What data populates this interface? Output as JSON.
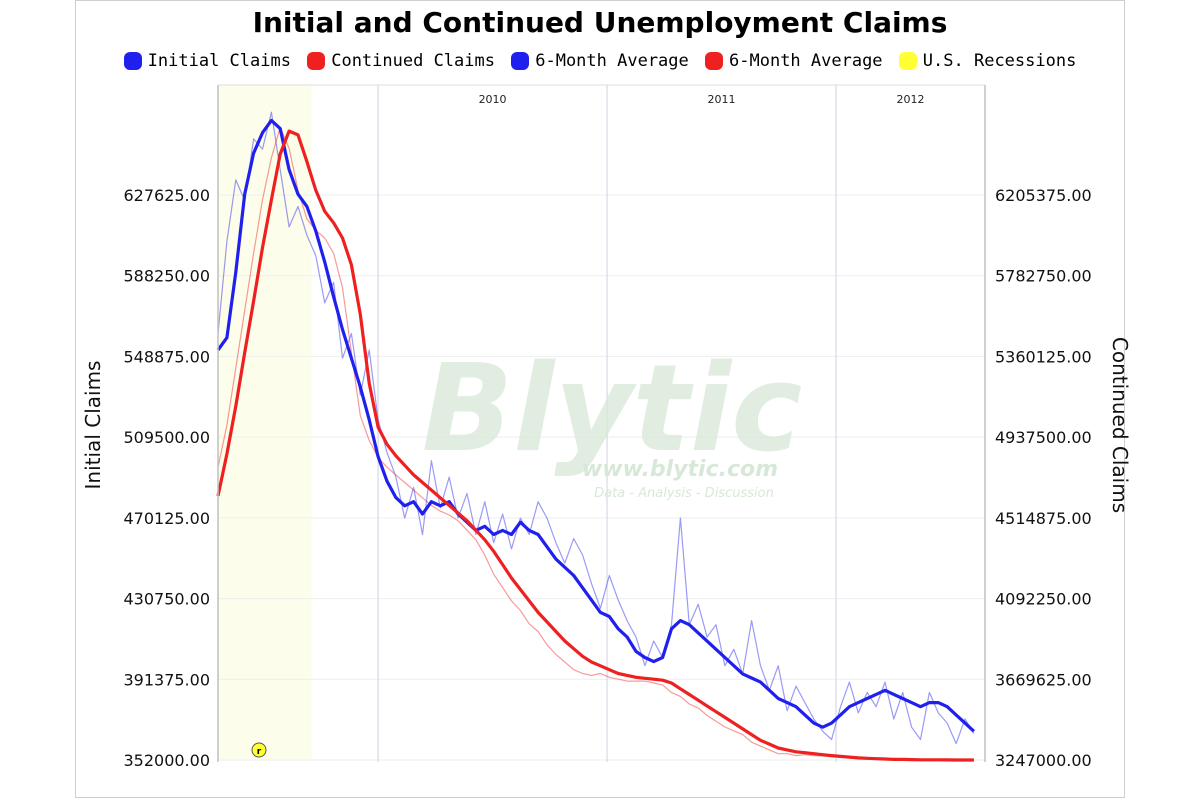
{
  "colors": {
    "initial": "#2020ee",
    "continued": "#ee2020",
    "recession": "#ffff33",
    "recession_band": "#fdfdeb",
    "watermark": "#d8e8d8"
  },
  "chart_data": {
    "type": "line",
    "title": "Initial and Continued Unemployment Claims",
    "legend": [
      "Initial Claims",
      "Continued Claims",
      "6-Month Average",
      "6-Month Average",
      "U.S. Recessions"
    ],
    "legend_placement": "top-center",
    "ylabel_left": "Initial Claims",
    "ylabel_right": "Continued Claims",
    "ylim_left": [
      352000,
      680000
    ],
    "ylim_right": [
      3247000,
      6600000
    ],
    "yticks_left": [
      "627625.00",
      "588250.00",
      "548875.00",
      "509500.00",
      "470125.00",
      "430750.00",
      "391375.00",
      "352000.00"
    ],
    "yticks_right": [
      "6205375.00",
      "5782750.00",
      "5360125.00",
      "4937500.00",
      "4514875.00",
      "4092250.00",
      "3669625.00",
      "3247000.00"
    ],
    "xlim": [
      2009.0,
      2012.45
    ],
    "year_labels": [
      "2010",
      "2011",
      "2012"
    ],
    "year_lines": [
      2009.72,
      2010.75,
      2011.78
    ],
    "recession": [
      2009.0,
      2009.42
    ],
    "grid": true,
    "watermark": {
      "text": "Blytic",
      "url": "www.blytic.com",
      "tagline": "Data - Analysis - Discussion"
    },
    "marker_label": "r",
    "series": [
      {
        "name": "Initial Claims",
        "axis": "left",
        "x": [
          2009.0,
          2009.04,
          2009.08,
          2009.12,
          2009.16,
          2009.2,
          2009.24,
          2009.28,
          2009.32,
          2009.36,
          2009.4,
          2009.44,
          2009.48,
          2009.52,
          2009.56,
          2009.6,
          2009.64,
          2009.68,
          2009.72,
          2009.76,
          2009.8,
          2009.84,
          2009.88,
          2009.92,
          2009.96,
          2010.0,
          2010.04,
          2010.08,
          2010.12,
          2010.16,
          2010.2,
          2010.24,
          2010.28,
          2010.32,
          2010.36,
          2010.4,
          2010.44,
          2010.48,
          2010.52,
          2010.56,
          2010.6,
          2010.64,
          2010.68,
          2010.72,
          2010.76,
          2010.8,
          2010.84,
          2010.88,
          2010.92,
          2010.96,
          2011.0,
          2011.04,
          2011.08,
          2011.12,
          2011.16,
          2011.2,
          2011.24,
          2011.28,
          2011.32,
          2011.36,
          2011.4,
          2011.44,
          2011.48,
          2011.52,
          2011.56,
          2011.6,
          2011.64,
          2011.68,
          2011.72,
          2011.76,
          2011.8,
          2011.84,
          2011.88,
          2011.92,
          2011.96,
          2012.0,
          2012.04,
          2012.08,
          2012.12,
          2012.16,
          2012.2,
          2012.24,
          2012.28,
          2012.32,
          2012.36,
          2012.4
        ],
        "values": [
          560000,
          605000,
          635000,
          625000,
          655000,
          650000,
          668000,
          640000,
          612000,
          622000,
          608000,
          598000,
          575000,
          585000,
          548000,
          560000,
          530000,
          552000,
          518000,
          502000,
          490000,
          470000,
          485000,
          462000,
          498000,
          475000,
          490000,
          470000,
          482000,
          462000,
          478000,
          458000,
          472000,
          455000,
          470000,
          462000,
          478000,
          470000,
          458000,
          448000,
          460000,
          452000,
          438000,
          426000,
          442000,
          430000,
          420000,
          412000,
          398000,
          410000,
          402000,
          418000,
          470000,
          418000,
          428000,
          412000,
          418000,
          398000,
          406000,
          394000,
          420000,
          398000,
          386000,
          398000,
          376000,
          388000,
          380000,
          372000,
          366000,
          362000,
          378000,
          390000,
          375000,
          385000,
          378000,
          390000,
          372000,
          385000,
          368000,
          362000,
          385000,
          375000,
          370000,
          360000,
          372000,
          365000
        ]
      },
      {
        "name": "Continued Claims",
        "axis": "right",
        "x": [
          2009.0,
          2009.04,
          2009.08,
          2009.12,
          2009.16,
          2009.2,
          2009.24,
          2009.28,
          2009.32,
          2009.36,
          2009.4,
          2009.44,
          2009.48,
          2009.52,
          2009.56,
          2009.6,
          2009.64,
          2009.68,
          2009.72,
          2009.76,
          2009.8,
          2009.84,
          2009.88,
          2009.92,
          2009.96,
          2010.0,
          2010.04,
          2010.08,
          2010.12,
          2010.16,
          2010.2,
          2010.24,
          2010.28,
          2010.32,
          2010.36,
          2010.4,
          2010.44,
          2010.48,
          2010.52,
          2010.56,
          2010.6,
          2010.64,
          2010.68,
          2010.72,
          2010.76,
          2010.8,
          2010.84,
          2010.88,
          2010.92,
          2010.96,
          2011.0,
          2011.04,
          2011.08,
          2011.12,
          2011.16,
          2011.2,
          2011.24,
          2011.28,
          2011.32,
          2011.36,
          2011.4,
          2011.44,
          2011.48,
          2011.52,
          2011.56,
          2011.6,
          2011.64,
          2011.68,
          2011.72,
          2011.76,
          2011.8,
          2011.84,
          2011.88,
          2011.92,
          2011.96,
          2012.0,
          2012.04,
          2012.08,
          2012.12,
          2012.16,
          2012.2,
          2012.24,
          2012.28,
          2012.32,
          2012.36,
          2012.4
        ],
        "values": [
          4780000,
          5000000,
          5300000,
          5600000,
          5900000,
          6180000,
          6400000,
          6560000,
          6450000,
          6230000,
          6080000,
          6020000,
          5980000,
          5900000,
          5720000,
          5380000,
          5050000,
          4920000,
          4830000,
          4780000,
          4740000,
          4700000,
          4660000,
          4620000,
          4580000,
          4550000,
          4530000,
          4500000,
          4450000,
          4400000,
          4320000,
          4220000,
          4150000,
          4080000,
          4030000,
          3960000,
          3920000,
          3850000,
          3800000,
          3760000,
          3720000,
          3700000,
          3690000,
          3700000,
          3680000,
          3670000,
          3660000,
          3660000,
          3660000,
          3650000,
          3640000,
          3600000,
          3580000,
          3540000,
          3520000,
          3480000,
          3450000,
          3420000,
          3400000,
          3380000,
          3340000,
          3320000,
          3300000,
          3280000,
          3280000,
          3270000,
          3275000,
          3270000,
          3268000,
          3265000,
          3262000,
          3260000,
          3258000,
          3256000,
          3254000,
          3252000,
          3250000,
          3250000,
          3249000,
          3248000,
          3248000,
          3248000,
          3247500,
          3247000,
          3247000,
          3247000
        ]
      },
      {
        "name": "6-Month Average",
        "axis": "left",
        "x": [
          2009.0,
          2009.04,
          2009.08,
          2009.12,
          2009.16,
          2009.2,
          2009.24,
          2009.28,
          2009.32,
          2009.36,
          2009.4,
          2009.44,
          2009.48,
          2009.52,
          2009.56,
          2009.6,
          2009.64,
          2009.68,
          2009.72,
          2009.76,
          2009.8,
          2009.84,
          2009.88,
          2009.92,
          2009.96,
          2010.0,
          2010.04,
          2010.08,
          2010.12,
          2010.16,
          2010.2,
          2010.24,
          2010.28,
          2010.32,
          2010.36,
          2010.4,
          2010.44,
          2010.48,
          2010.52,
          2010.56,
          2010.6,
          2010.64,
          2010.68,
          2010.72,
          2010.76,
          2010.8,
          2010.84,
          2010.88,
          2010.92,
          2010.96,
          2011.0,
          2011.04,
          2011.08,
          2011.12,
          2011.16,
          2011.2,
          2011.24,
          2011.28,
          2011.32,
          2011.36,
          2011.4,
          2011.44,
          2011.48,
          2011.52,
          2011.56,
          2011.6,
          2011.64,
          2011.68,
          2011.72,
          2011.76,
          2011.8,
          2011.84,
          2011.88,
          2011.92,
          2011.96,
          2012.0,
          2012.04,
          2012.08,
          2012.12,
          2012.16,
          2012.2,
          2012.24,
          2012.28,
          2012.32,
          2012.36,
          2012.4
        ],
        "values": [
          552000,
          558000,
          590000,
          628000,
          648000,
          658000,
          664000,
          660000,
          640000,
          628000,
          622000,
          610000,
          595000,
          578000,
          562000,
          548000,
          534000,
          518000,
          500000,
          488000,
          480000,
          476000,
          478000,
          472000,
          478000,
          476000,
          478000,
          472000,
          468000,
          464000,
          466000,
          462000,
          464000,
          462000,
          468000,
          464000,
          462000,
          456000,
          450000,
          446000,
          442000,
          436000,
          430000,
          424000,
          422000,
          416000,
          412000,
          405000,
          402000,
          400000,
          402000,
          416000,
          420000,
          418000,
          414000,
          410000,
          406000,
          402000,
          398000,
          394000,
          392000,
          390000,
          386000,
          382000,
          380000,
          378000,
          374000,
          370000,
          368000,
          370000,
          374000,
          378000,
          380000,
          382000,
          384000,
          386000,
          384000,
          382000,
          380000,
          378000,
          380000,
          380000,
          378000,
          374000,
          370000,
          366000
        ]
      },
      {
        "name": "6-Month Average",
        "axis": "right",
        "x": [
          2009.0,
          2009.04,
          2009.08,
          2009.12,
          2009.16,
          2009.2,
          2009.24,
          2009.28,
          2009.32,
          2009.36,
          2009.4,
          2009.44,
          2009.48,
          2009.52,
          2009.56,
          2009.6,
          2009.64,
          2009.68,
          2009.72,
          2009.76,
          2009.8,
          2009.84,
          2009.88,
          2009.92,
          2009.96,
          2010.0,
          2010.04,
          2010.08,
          2010.12,
          2010.16,
          2010.2,
          2010.24,
          2010.28,
          2010.32,
          2010.36,
          2010.4,
          2010.44,
          2010.48,
          2010.52,
          2010.56,
          2010.6,
          2010.64,
          2010.68,
          2010.72,
          2010.76,
          2010.8,
          2010.84,
          2010.88,
          2010.92,
          2010.96,
          2011.0,
          2011.04,
          2011.08,
          2011.12,
          2011.16,
          2011.2,
          2011.24,
          2011.28,
          2011.32,
          2011.36,
          2011.4,
          2011.44,
          2011.48,
          2011.52,
          2011.56,
          2011.6,
          2011.64,
          2011.68,
          2011.72,
          2011.76,
          2011.8,
          2011.84,
          2011.88,
          2011.92,
          2011.96,
          2012.0,
          2012.04,
          2012.08,
          2012.12,
          2012.16,
          2012.2,
          2012.24,
          2012.28,
          2012.32,
          2012.36,
          2012.4
        ],
        "values": [
          4630000,
          4850000,
          5100000,
          5380000,
          5650000,
          5930000,
          6180000,
          6420000,
          6540000,
          6520000,
          6380000,
          6230000,
          6120000,
          6060000,
          5980000,
          5840000,
          5580000,
          5220000,
          4990000,
          4900000,
          4840000,
          4790000,
          4740000,
          4700000,
          4660000,
          4620000,
          4580000,
          4540000,
          4500000,
          4450000,
          4400000,
          4340000,
          4270000,
          4200000,
          4140000,
          4080000,
          4020000,
          3970000,
          3920000,
          3870000,
          3830000,
          3790000,
          3760000,
          3740000,
          3720000,
          3700000,
          3690000,
          3680000,
          3675000,
          3670000,
          3665000,
          3650000,
          3620000,
          3590000,
          3560000,
          3530000,
          3500000,
          3470000,
          3440000,
          3410000,
          3380000,
          3350000,
          3330000,
          3310000,
          3300000,
          3290000,
          3285000,
          3280000,
          3275000,
          3270000,
          3266000,
          3262000,
          3258000,
          3256000,
          3254000,
          3252000,
          3250000,
          3250000,
          3249000,
          3248000,
          3248000,
          3248000,
          3247500,
          3247000,
          3247000,
          3247000
        ]
      }
    ]
  }
}
